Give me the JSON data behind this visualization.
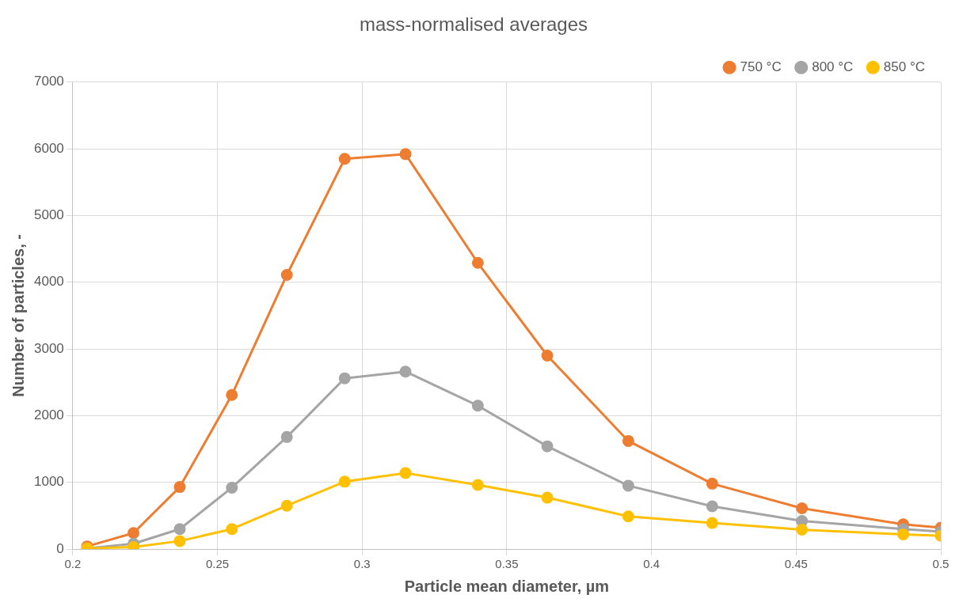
{
  "chart_data": {
    "type": "line",
    "title": "mass-normalised averages",
    "xlabel": "Particle mean diameter, µm",
    "ylabel": "Number of particles, -",
    "x": [
      0.205,
      0.221,
      0.237,
      0.255,
      0.274,
      0.294,
      0.315,
      0.34,
      0.364,
      0.392,
      0.421,
      0.452,
      0.487,
      0.5
    ],
    "series": [
      {
        "name": "750 °C",
        "color": "#ed7d31",
        "values": [
          40,
          240,
          930,
          2310,
          4110,
          5850,
          5920,
          4290,
          2900,
          1620,
          980,
          610,
          370,
          320
        ]
      },
      {
        "name": "800 °C",
        "color": "#a5a5a5",
        "values": [
          10,
          80,
          300,
          920,
          1680,
          2560,
          2660,
          2150,
          1540,
          950,
          640,
          420,
          300,
          260
        ]
      },
      {
        "name": "850 °C",
        "color": "#ffc000",
        "values": [
          10,
          30,
          120,
          300,
          650,
          1010,
          1140,
          960,
          770,
          490,
          390,
          290,
          220,
          200
        ]
      }
    ],
    "xlim": [
      0.2,
      0.5
    ],
    "xticks": [
      0.2,
      0.25,
      0.3,
      0.35,
      0.4,
      0.45,
      0.5
    ],
    "ylim": [
      0,
      7000
    ],
    "yticks": [
      0,
      1000,
      2000,
      3000,
      4000,
      5000,
      6000,
      7000
    ],
    "grid": true,
    "legend": "top right",
    "marker": "circle",
    "line_style": "solid"
  }
}
